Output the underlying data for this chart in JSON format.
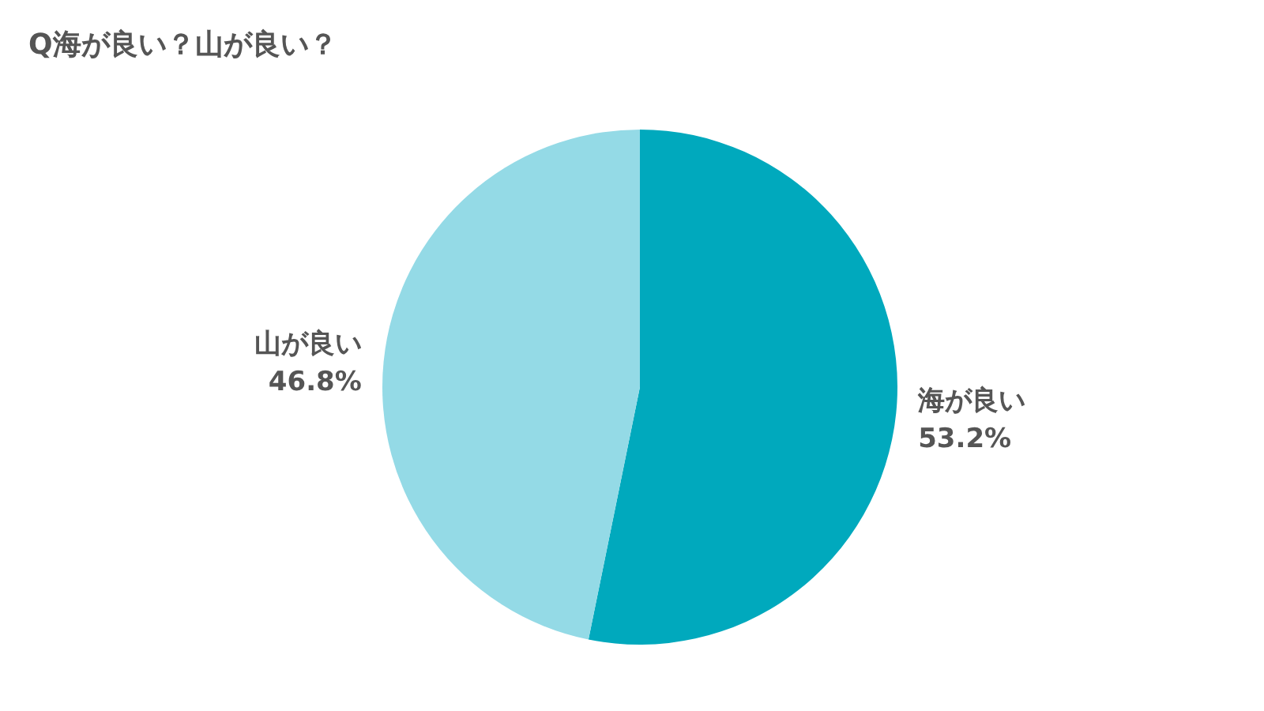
{
  "chart_data": {
    "type": "pie",
    "title": "Q海が良い？山が良い？",
    "categories": [
      "海が良い",
      "山が良い"
    ],
    "values": [
      53.2,
      46.8
    ],
    "colors": [
      "#00a9bd",
      "#94dae6"
    ],
    "value_labels": [
      "53.2%",
      "46.8%"
    ]
  }
}
